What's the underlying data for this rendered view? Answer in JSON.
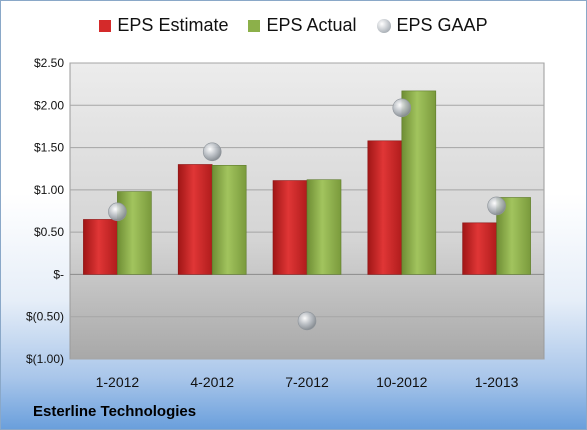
{
  "company": "Esterline Technologies",
  "colors": {
    "estimate": "#d42a2a",
    "actual": "#8cb04a",
    "gaap": "#b9bec4"
  },
  "chart_data": {
    "type": "bar",
    "categories": [
      "1-2012",
      "4-2012",
      "7-2012",
      "10-2012",
      "1-2013"
    ],
    "series": [
      {
        "name": "EPS Estimate",
        "type": "bar",
        "values": [
          0.65,
          1.3,
          1.11,
          1.58,
          0.61
        ]
      },
      {
        "name": "EPS Actual",
        "type": "bar",
        "values": [
          0.98,
          1.29,
          1.12,
          2.17,
          0.91
        ]
      },
      {
        "name": "EPS GAAP",
        "type": "scatter",
        "values": [
          0.74,
          1.45,
          -0.55,
          1.97,
          0.81
        ]
      }
    ],
    "y_ticks": [
      2.5,
      2.0,
      1.5,
      1.0,
      0.5,
      0,
      -0.5,
      -1.0
    ],
    "y_tick_labels": [
      "$2.50",
      "$2.00",
      "$1.50",
      "$1.00",
      "$0.50",
      "$-",
      "$(0.50)",
      "$(1.00)"
    ],
    "ylim": [
      -1.0,
      2.5
    ],
    "grid": true,
    "legend_position": "top"
  }
}
